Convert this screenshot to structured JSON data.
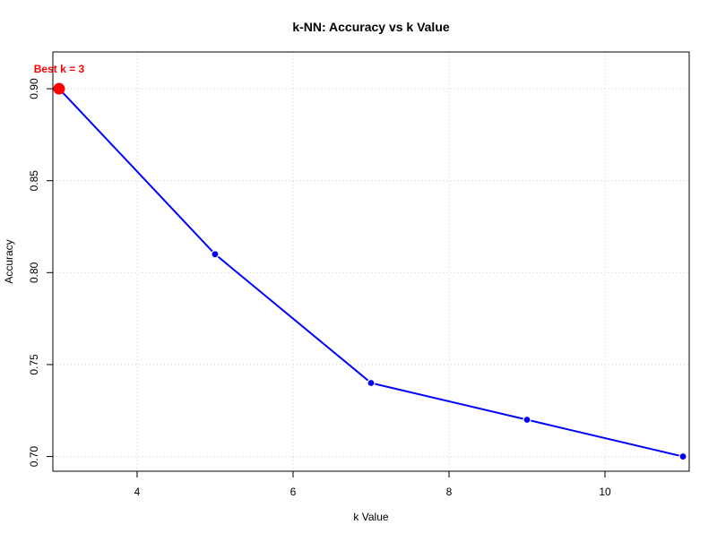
{
  "chart_data": {
    "type": "line",
    "title": "k-NN: Accuracy vs k Value",
    "xlabel": "k Value",
    "ylabel": "Accuracy",
    "x": [
      3,
      5,
      7,
      9,
      11
    ],
    "series": [
      {
        "values": [
          0.9,
          0.81,
          0.74,
          0.72,
          0.7
        ],
        "color": "#0000ff"
      }
    ],
    "xlim": [
      2.92,
      11.08
    ],
    "ylim": [
      0.692,
      0.92
    ],
    "x_ticks": [
      4,
      6,
      8,
      10
    ],
    "x_tick_labels": [
      "4",
      "6",
      "8",
      "10"
    ],
    "y_ticks": [
      0.7,
      0.75,
      0.8,
      0.85,
      0.9
    ],
    "y_tick_labels": [
      "0.70",
      "0.75",
      "0.80",
      "0.85",
      "0.90"
    ],
    "grid": true,
    "grid_style": "dotted",
    "grid_color": "#d3d3d3",
    "highlight": {
      "x": 3,
      "y": 0.9,
      "label": "Best k = 3",
      "color": "#ff0000"
    }
  }
}
